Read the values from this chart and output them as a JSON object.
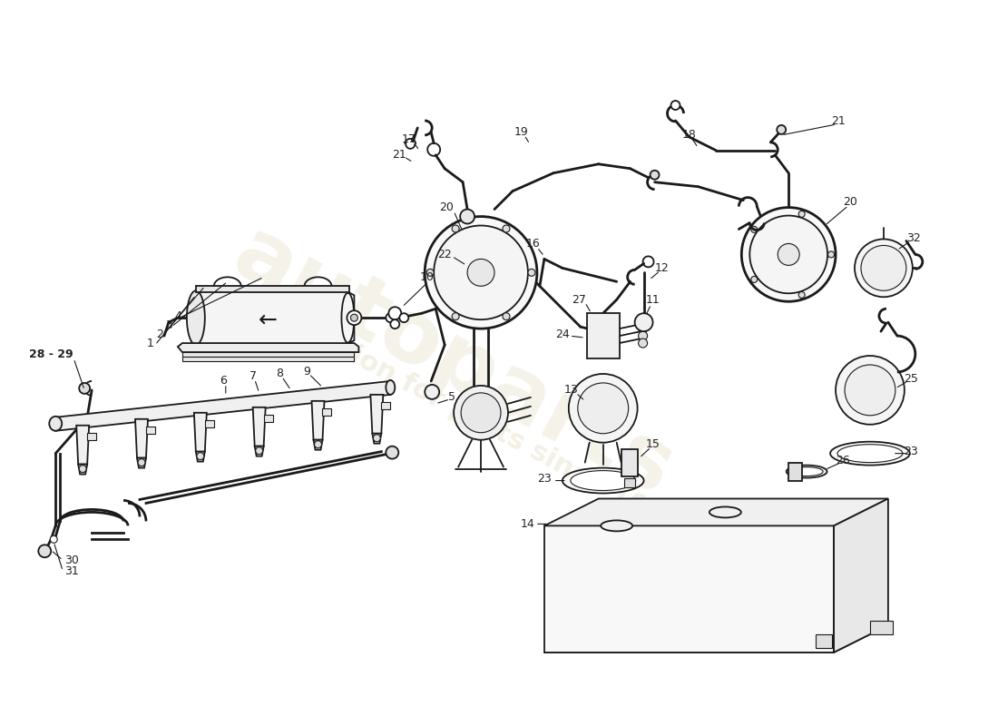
{
  "background_color": "#ffffff",
  "line_color": "#1a1a1a",
  "label_color": "#222222",
  "label_fontsize": 9,
  "wm_color1": "#c8b870",
  "wm_color2": "#c8b870",
  "figw": 11.0,
  "figh": 8.0,
  "dpi": 100,
  "xlim": [
    0,
    1100
  ],
  "ylim": [
    800,
    0
  ]
}
